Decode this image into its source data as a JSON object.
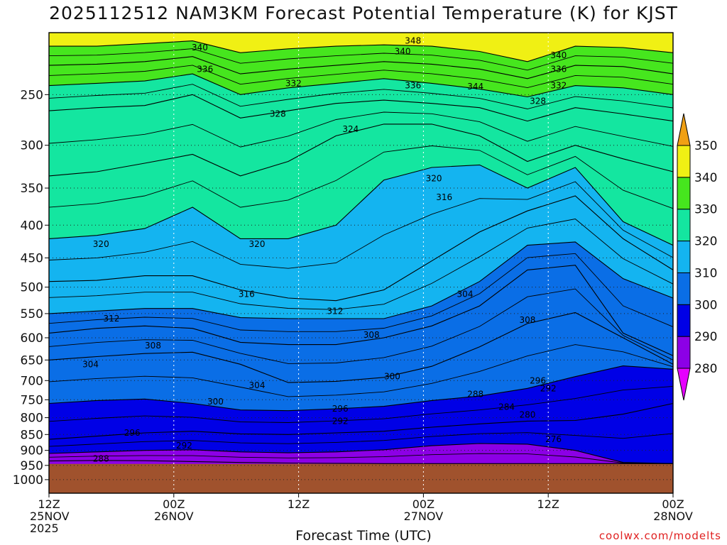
{
  "title": "2025112512 NAM3KM Forecast Potential Temperature (K) for KJST",
  "credit": "coolwx.com/modelts",
  "chart_data": {
    "type": "contour",
    "title": "2025112512 NAM3KM Forecast Potential Temperature (K) for KJST",
    "xlabel": "Forecast Time (UTC)",
    "ylabel": "",
    "y_scale": "log-pressure",
    "y_direction": "pressure decreasing upward",
    "ylim": [
      1050,
      200
    ],
    "y_ticks": [
      250,
      300,
      350,
      400,
      450,
      500,
      550,
      600,
      650,
      700,
      750,
      800,
      850,
      900,
      950,
      1000
    ],
    "x_hours_range": [
      0,
      60
    ],
    "x_ticks": [
      {
        "hour": 0,
        "line1": "12Z",
        "line2": "25NOV",
        "line3": "2025"
      },
      {
        "hour": 12,
        "line1": "00Z",
        "line2": "26NOV",
        "line3": ""
      },
      {
        "hour": 24,
        "line1": "12Z",
        "line2": "",
        "line3": ""
      },
      {
        "hour": 36,
        "line1": "00Z",
        "line2": "27NOV",
        "line3": ""
      },
      {
        "hour": 48,
        "line1": "12Z",
        "line2": "",
        "line3": ""
      },
      {
        "hour": 60,
        "line1": "00Z",
        "line2": "28NOV",
        "line3": ""
      }
    ],
    "grid": "dotted",
    "surface_pressure_hpa": 945,
    "ground_color": "#a0522d",
    "contour_interval_K": 2,
    "colorbar": {
      "placement": "right",
      "labels": [
        280,
        290,
        300,
        310,
        320,
        330,
        340,
        350
      ],
      "colors": [
        "#e600ff",
        "#8c00e6",
        "#0000e6",
        "#0a6ee6",
        "#14b4f0",
        "#14e6a0",
        "#46e61e",
        "#f0f014",
        "#f0a014"
      ],
      "extend": "both"
    },
    "series": [
      {
        "theta": 288,
        "p": [
          935,
          933,
          934,
          937,
          940,
          942,
          943,
          944,
          944,
          944,
          944,
          944,
          944,
          944
        ]
      },
      {
        "theta": 292,
        "p": [
          910,
          905,
          900,
          898,
          905,
          908,
          905,
          898,
          885,
          878,
          880,
          900,
          940,
          944
        ]
      },
      {
        "theta": 296,
        "p": [
          865,
          855,
          845,
          840,
          848,
          850,
          845,
          840,
          828,
          818,
          810,
          808,
          790,
          760
        ]
      },
      {
        "theta": 300,
        "p": [
          760,
          752,
          748,
          760,
          778,
          780,
          775,
          768,
          752,
          740,
          720,
          690,
          664,
          672
        ]
      },
      {
        "theta": 304,
        "p": [
          650,
          642,
          635,
          632,
          660,
          705,
          702,
          692,
          665,
          620,
          570,
          548,
          600,
          660
        ]
      },
      {
        "theta": 308,
        "p": [
          590,
          580,
          575,
          580,
          610,
          615,
          615,
          600,
          575,
          535,
          470,
          462,
          590,
          640
        ]
      },
      {
        "theta": 312,
        "p": [
          550,
          545,
          540,
          540,
          558,
          560,
          560,
          560,
          535,
          490,
          430,
          425,
          485,
          520
        ]
      },
      {
        "theta": 316,
        "p": [
          490,
          488,
          480,
          480,
          505,
          520,
          525,
          505,
          455,
          410,
          380,
          360,
          420,
          470
        ]
      },
      {
        "theta": 320,
        "p": [
          420,
          415,
          405,
          375,
          420,
          420,
          400,
          340,
          325,
          322,
          350,
          325,
          395,
          430
        ]
      },
      {
        "theta": 324,
        "p": [
          335,
          330,
          320,
          310,
          335,
          318,
          290,
          278,
          278,
          290,
          318,
          300,
          315,
          330
        ]
      },
      {
        "theta": 328,
        "p": [
          265,
          262,
          260,
          250,
          272,
          265,
          258,
          255,
          258,
          262,
          275,
          262,
          268,
          275
        ]
      },
      {
        "theta": 332,
        "p": [
          242,
          240,
          238,
          232,
          250,
          244,
          240,
          236,
          240,
          245,
          252,
          242,
          244,
          250
        ]
      },
      {
        "theta": 336,
        "p": [
          225,
          224,
          222,
          218,
          232,
          228,
          225,
          222,
          224,
          228,
          236,
          225,
          226,
          232
        ]
      },
      {
        "theta": 340,
        "p": [
          210,
          210,
          208,
          206,
          215,
          212,
          210,
          209,
          210,
          214,
          222,
          210,
          211,
          215
        ]
      }
    ],
    "series_hours": [
      0,
      4.6,
      9.2,
      13.8,
      18.4,
      23,
      27.6,
      32.2,
      36.8,
      41.4,
      46,
      50.6,
      55.2,
      60
    ],
    "contour_labels": [
      {
        "text": "340",
        "hour": 14.5,
        "p": 211
      },
      {
        "text": "348",
        "hour": 35,
        "p": 206
      },
      {
        "text": "340",
        "hour": 34,
        "p": 214
      },
      {
        "text": "340",
        "hour": 49,
        "p": 217
      },
      {
        "text": "336",
        "hour": 15,
        "p": 228
      },
      {
        "text": "336",
        "hour": 49,
        "p": 228
      },
      {
        "text": "332",
        "hour": 23.5,
        "p": 240
      },
      {
        "text": "336",
        "hour": 35,
        "p": 242
      },
      {
        "text": "344",
        "hour": 41,
        "p": 243
      },
      {
        "text": "332",
        "hour": 49,
        "p": 242
      },
      {
        "text": "328",
        "hour": 22,
        "p": 268
      },
      {
        "text": "328",
        "hour": 47,
        "p": 256
      },
      {
        "text": "324",
        "hour": 29,
        "p": 283
      },
      {
        "text": "320",
        "hour": 37,
        "p": 338
      },
      {
        "text": "316",
        "hour": 38,
        "p": 362
      },
      {
        "text": "320",
        "hour": 5,
        "p": 428
      },
      {
        "text": "320",
        "hour": 20,
        "p": 428
      },
      {
        "text": "316",
        "hour": 19,
        "p": 513
      },
      {
        "text": "312",
        "hour": 6,
        "p": 560
      },
      {
        "text": "312",
        "hour": 27.5,
        "p": 545
      },
      {
        "text": "304",
        "hour": 40,
        "p": 513
      },
      {
        "text": "308",
        "hour": 10,
        "p": 617
      },
      {
        "text": "308",
        "hour": 31,
        "p": 594
      },
      {
        "text": "308",
        "hour": 46,
        "p": 563
      },
      {
        "text": "304",
        "hour": 4,
        "p": 660
      },
      {
        "text": "304",
        "hour": 20,
        "p": 712
      },
      {
        "text": "300",
        "hour": 33,
        "p": 690
      },
      {
        "text": "296",
        "hour": 47,
        "p": 700
      },
      {
        "text": "292",
        "hour": 48,
        "p": 720
      },
      {
        "text": "300",
        "hour": 16,
        "p": 755
      },
      {
        "text": "296",
        "hour": 28,
        "p": 775
      },
      {
        "text": "292",
        "hour": 28,
        "p": 810
      },
      {
        "text": "288",
        "hour": 41,
        "p": 735
      },
      {
        "text": "284",
        "hour": 44,
        "p": 770
      },
      {
        "text": "280",
        "hour": 46,
        "p": 792
      },
      {
        "text": "296",
        "hour": 8,
        "p": 845
      },
      {
        "text": "292",
        "hour": 13,
        "p": 885
      },
      {
        "text": "276",
        "hour": 48.5,
        "p": 865
      },
      {
        "text": "288",
        "hour": 5,
        "p": 928
      }
    ]
  }
}
